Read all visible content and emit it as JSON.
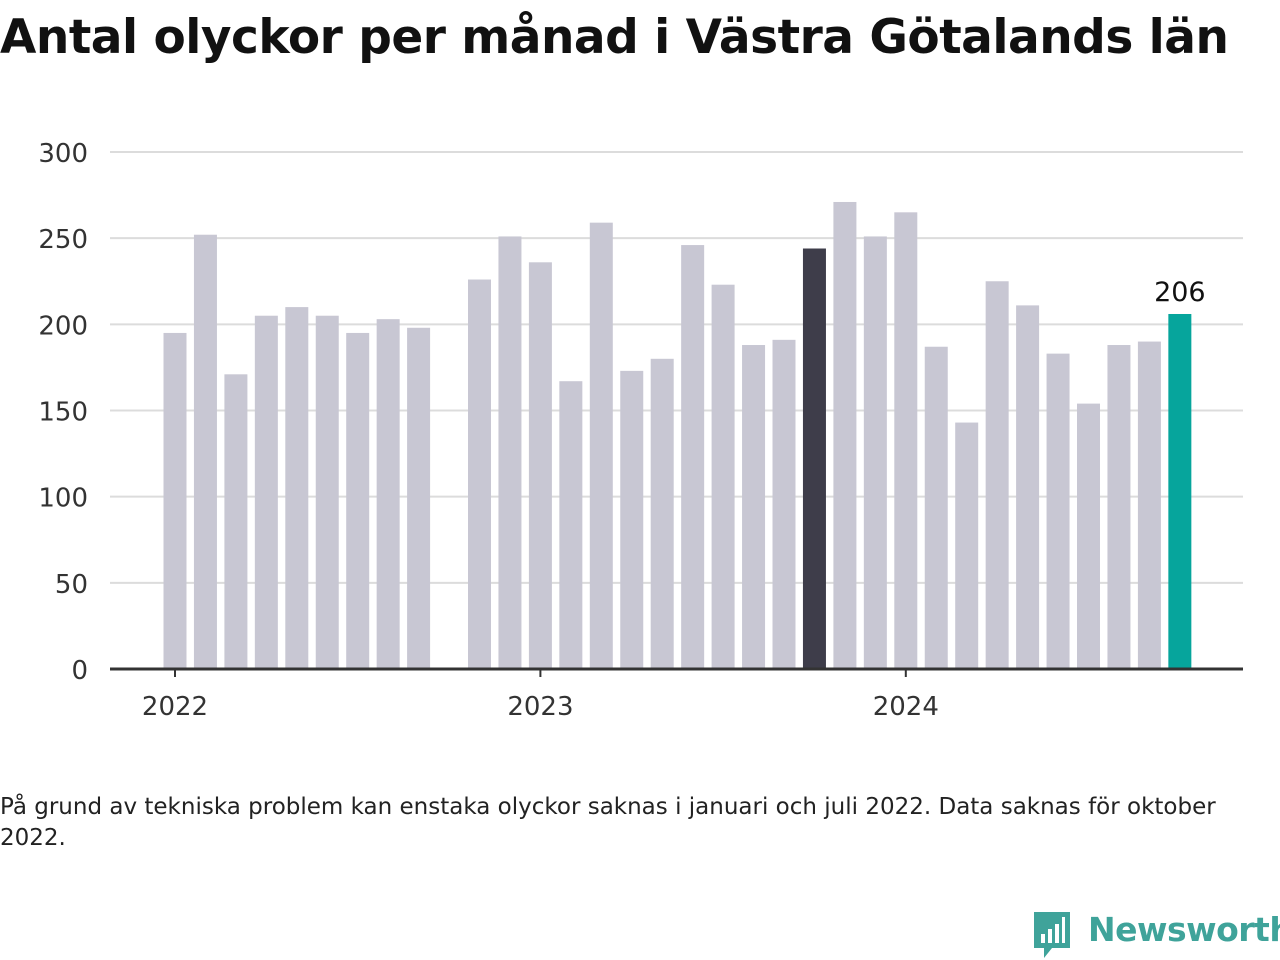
{
  "title": "Antal olyckor per månad i Västra Götalands län",
  "note": "På grund av tekniska problem kan enstaka olyckor saknas i januari och juli 2022. Data saknas för oktober 2022.",
  "logo": {
    "text": "Newsworthy",
    "icon": "chart-speech-bubble-icon"
  },
  "colors": {
    "default_bar": "#c8c7d3",
    "highlight_bar": "#3e3d4a",
    "latest_bar": "#06a59c",
    "grid": "#dcdcdc",
    "axis": "#333333"
  },
  "chart_data": {
    "type": "bar",
    "title": "Antal olyckor per månad i Västra Götalands län",
    "xlabel": "",
    "ylabel": "",
    "ylim": [
      0,
      300
    ],
    "yticks": [
      "0",
      "50",
      "100",
      "150",
      "200",
      "250",
      "300"
    ],
    "xticks": [
      "2022",
      "2023",
      "2024"
    ],
    "grid": true,
    "x": [
      "2022-01",
      "2022-02",
      "2022-03",
      "2022-04",
      "2022-05",
      "2022-06",
      "2022-07",
      "2022-08",
      "2022-09",
      "2022-10",
      "2022-11",
      "2022-12",
      "2023-01",
      "2023-02",
      "2023-03",
      "2023-04",
      "2023-05",
      "2023-06",
      "2023-07",
      "2023-08",
      "2023-09",
      "2023-10",
      "2023-11",
      "2023-12",
      "2024-01",
      "2024-02",
      "2024-03",
      "2024-04",
      "2024-05",
      "2024-06",
      "2024-07",
      "2024-08",
      "2024-09",
      "2024-10"
    ],
    "values": [
      195,
      252,
      171,
      205,
      210,
      205,
      195,
      203,
      198,
      null,
      226,
      251,
      236,
      167,
      259,
      173,
      180,
      246,
      223,
      188,
      191,
      244,
      271,
      251,
      265,
      187,
      143,
      225,
      211,
      183,
      154,
      188,
      190,
      206
    ],
    "highlight": {
      "2023-10": "highlight_bar",
      "2024-10": "latest_bar"
    },
    "data_labels": [
      {
        "x": "2024-10",
        "text": "206"
      }
    ]
  }
}
